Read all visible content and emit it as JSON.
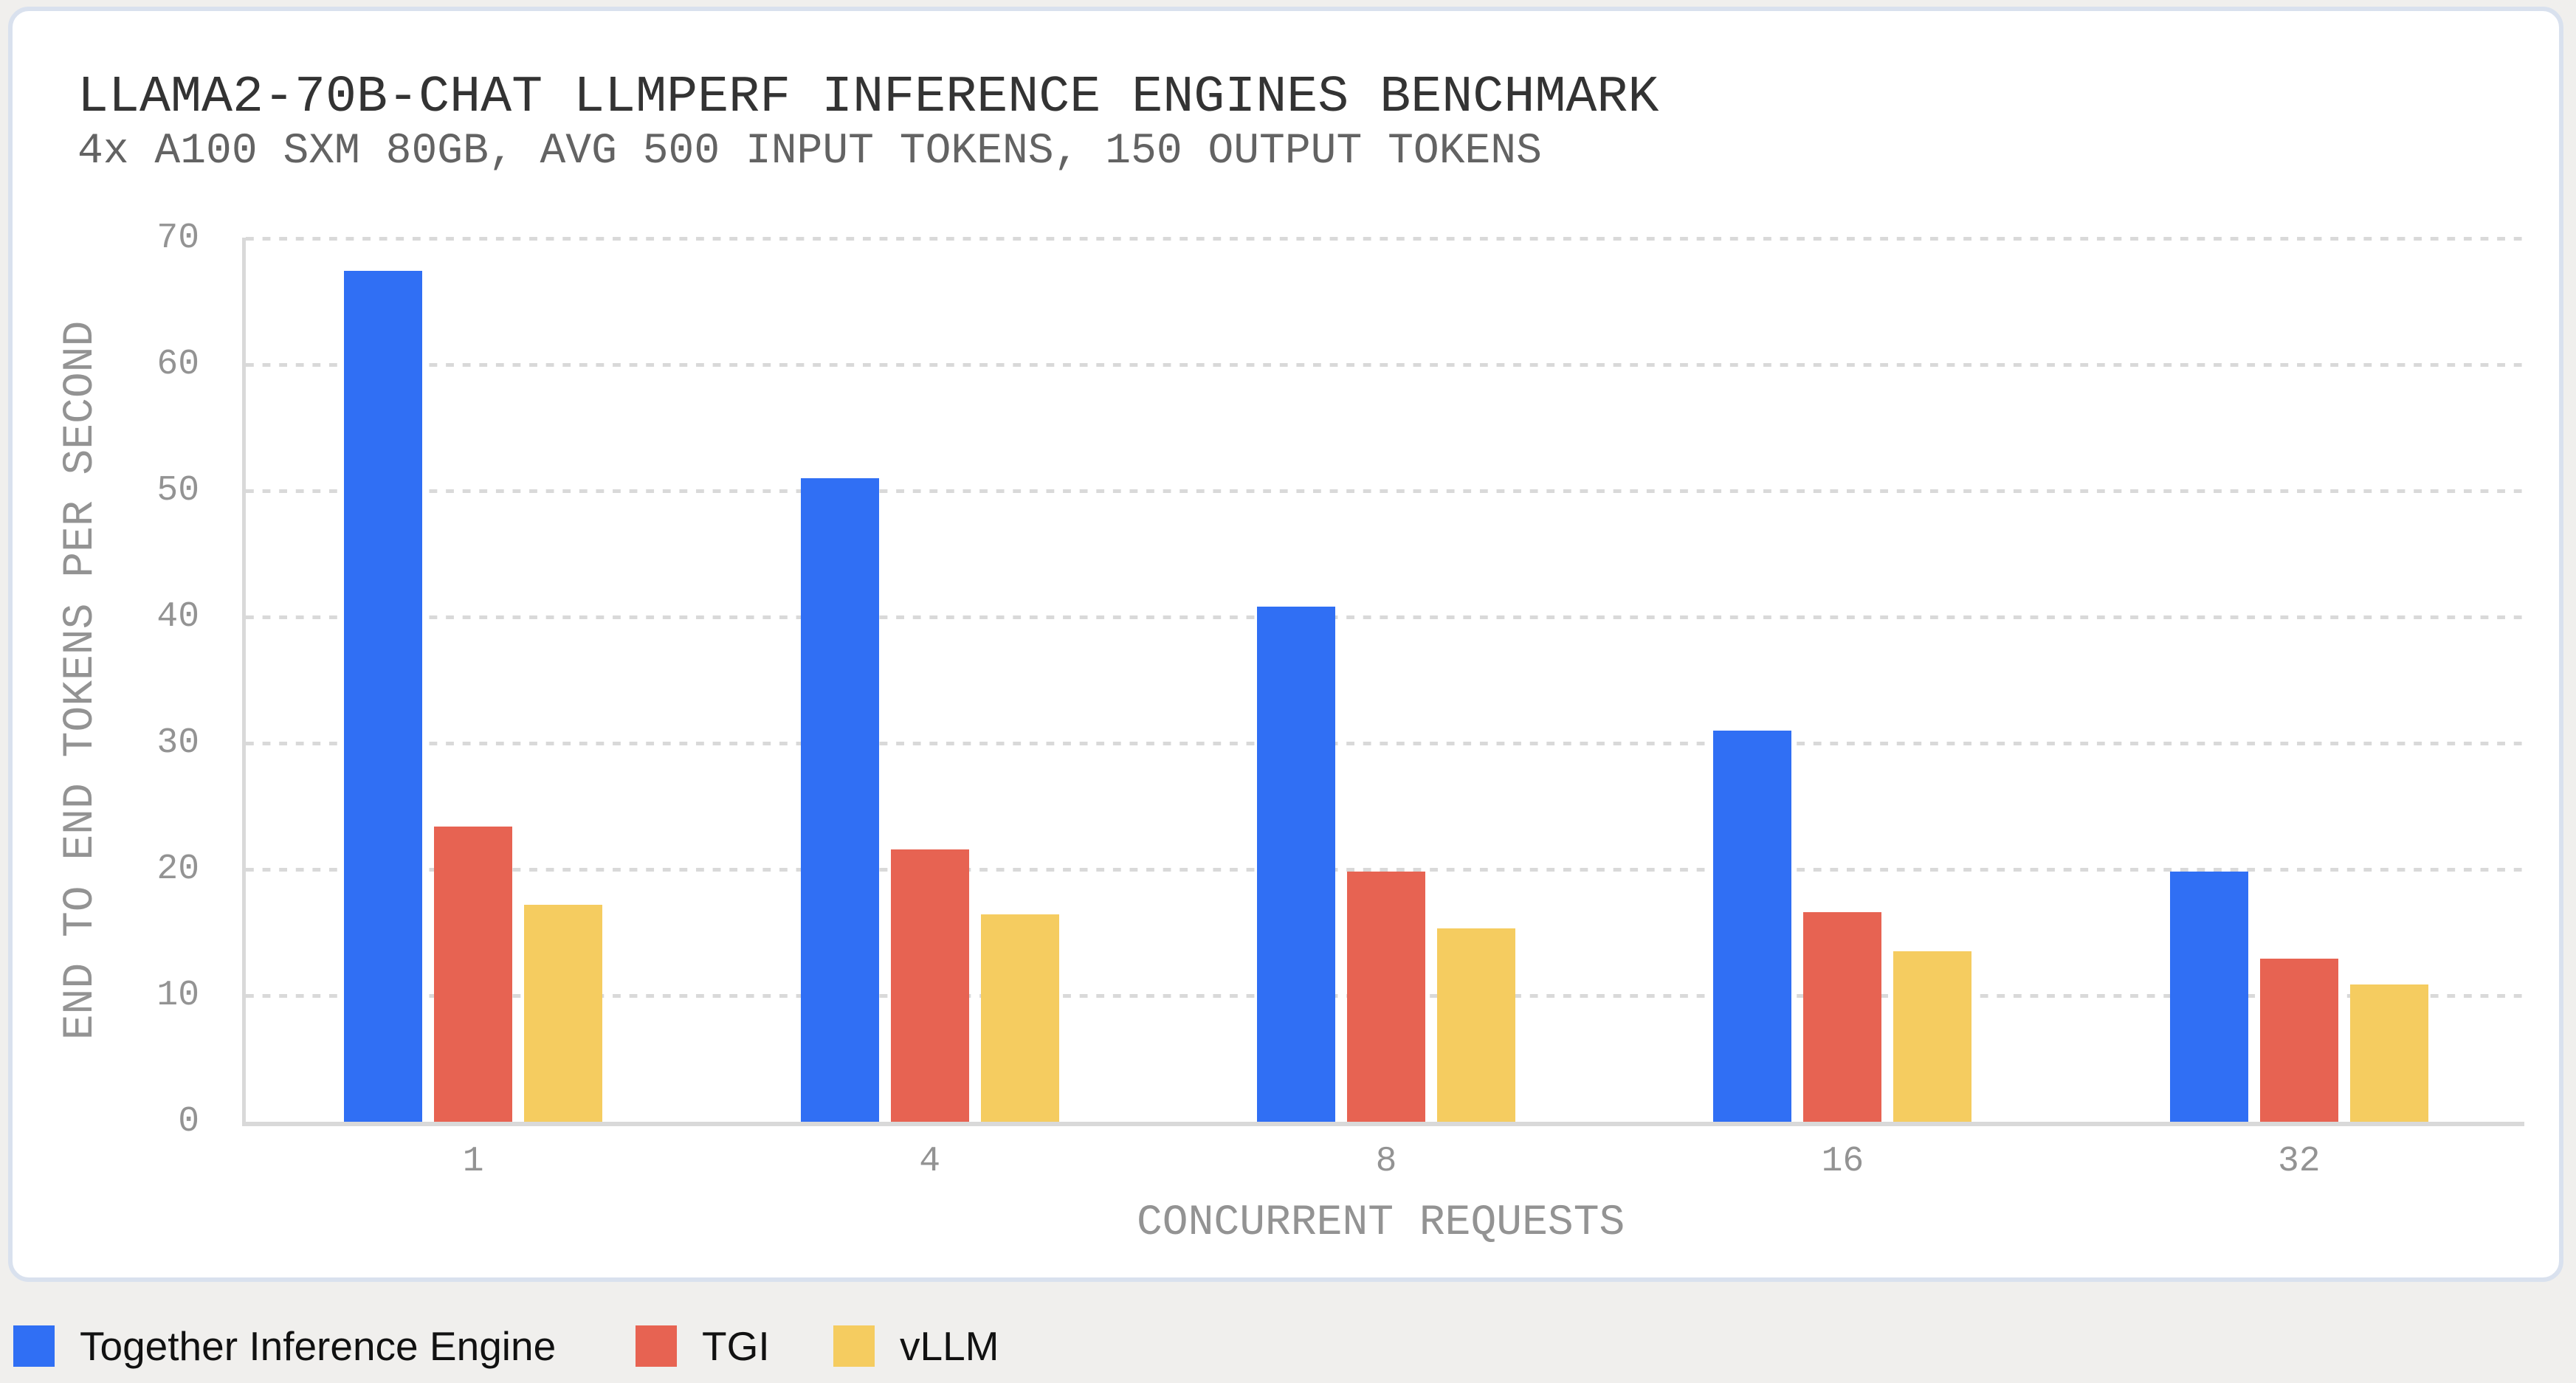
{
  "header": {
    "title": "LLAMA2-70B-CHAT LLMPERF INFERENCE ENGINES BENCHMARK",
    "subtitle": "4x A100 SXM 80GB, AVG 500 INPUT TOKENS, 150 OUTPUT TOKENS"
  },
  "axes": {
    "x_title": "CONCURRENT REQUESTS",
    "y_title": "END TO END TOKENS PER SECOND",
    "y_ticks": [
      "0",
      "10",
      "20",
      "30",
      "40",
      "50",
      "60",
      "70"
    ],
    "x_ticks": [
      "1",
      "4",
      "8",
      "16",
      "32"
    ]
  },
  "legend": {
    "items": [
      {
        "label": "Together Inference Engine",
        "color": "#306ff4"
      },
      {
        "label": "TGI",
        "color": "#e76352"
      },
      {
        "label": "vLLM",
        "color": "#f5cc60"
      }
    ]
  },
  "chart_data": {
    "type": "bar",
    "title": "LLAMA2-70B-CHAT LLMPERF INFERENCE ENGINES BENCHMARK",
    "subtitle": "4x A100 SXM 80GB, AVG 500 INPUT TOKENS, 150 OUTPUT TOKENS",
    "xlabel": "CONCURRENT REQUESTS",
    "ylabel": "END TO END TOKENS PER SECOND",
    "categories": [
      "1",
      "4",
      "8",
      "16",
      "32"
    ],
    "series": [
      {
        "name": "Together Inference Engine",
        "color": "#306ff4",
        "values": [
          67.4,
          51.0,
          40.8,
          31.0,
          19.8
        ]
      },
      {
        "name": "TGI",
        "color": "#e76352",
        "values": [
          23.4,
          21.6,
          19.8,
          16.6,
          12.9
        ]
      },
      {
        "name": "vLLM",
        "color": "#f5cc60",
        "values": [
          17.2,
          16.4,
          15.3,
          13.5,
          10.9
        ]
      }
    ],
    "ylim": [
      0,
      70
    ],
    "yticks": [
      0,
      10,
      20,
      30,
      40,
      50,
      60,
      70
    ],
    "grid": true,
    "grid_style": "dashed horizontal",
    "legend_position": "bottom-left, outside chart card"
  }
}
